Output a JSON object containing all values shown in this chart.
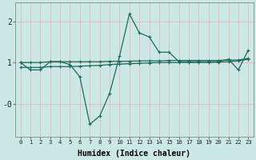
{
  "x": [
    0,
    1,
    2,
    3,
    4,
    5,
    6,
    7,
    8,
    9,
    10,
    11,
    12,
    13,
    14,
    15,
    16,
    17,
    18,
    19,
    20,
    21,
    22,
    23
  ],
  "y_main": [
    1.0,
    0.82,
    0.82,
    1.02,
    1.02,
    0.95,
    0.65,
    -0.5,
    -0.3,
    0.25,
    1.15,
    2.18,
    1.72,
    1.62,
    1.25,
    1.25,
    1.02,
    1.02,
    1.02,
    1.02,
    1.02,
    1.08,
    0.82,
    1.3
  ],
  "y_trend1": [
    1.0,
    1.0,
    1.0,
    1.02,
    1.02,
    1.02,
    1.02,
    1.02,
    1.02,
    1.03,
    1.03,
    1.03,
    1.04,
    1.04,
    1.04,
    1.05,
    1.05,
    1.05,
    1.05,
    1.05,
    1.05,
    1.06,
    1.06,
    1.1
  ],
  "y_trend2": [
    0.88,
    0.88,
    0.88,
    0.9,
    0.9,
    0.9,
    0.91,
    0.92,
    0.93,
    0.95,
    0.96,
    0.97,
    0.98,
    0.99,
    1.0,
    1.0,
    1.0,
    1.0,
    1.0,
    1.0,
    1.01,
    1.02,
    1.04,
    1.08
  ],
  "color": "#1a6b5a",
  "bg_color": "#cce8e5",
  "grid_color": "#e8b8b8",
  "xlabel": "Humidex (Indice chaleur)",
  "xlim": [
    -0.5,
    23.5
  ],
  "ylim": [
    -0.8,
    2.45
  ],
  "yticks": [
    0,
    1,
    2
  ],
  "ytick_labels": [
    "-0",
    "1",
    "2"
  ],
  "xticks": [
    0,
    1,
    2,
    3,
    4,
    5,
    6,
    7,
    8,
    9,
    10,
    11,
    12,
    13,
    14,
    15,
    16,
    17,
    18,
    19,
    20,
    21,
    22,
    23
  ]
}
